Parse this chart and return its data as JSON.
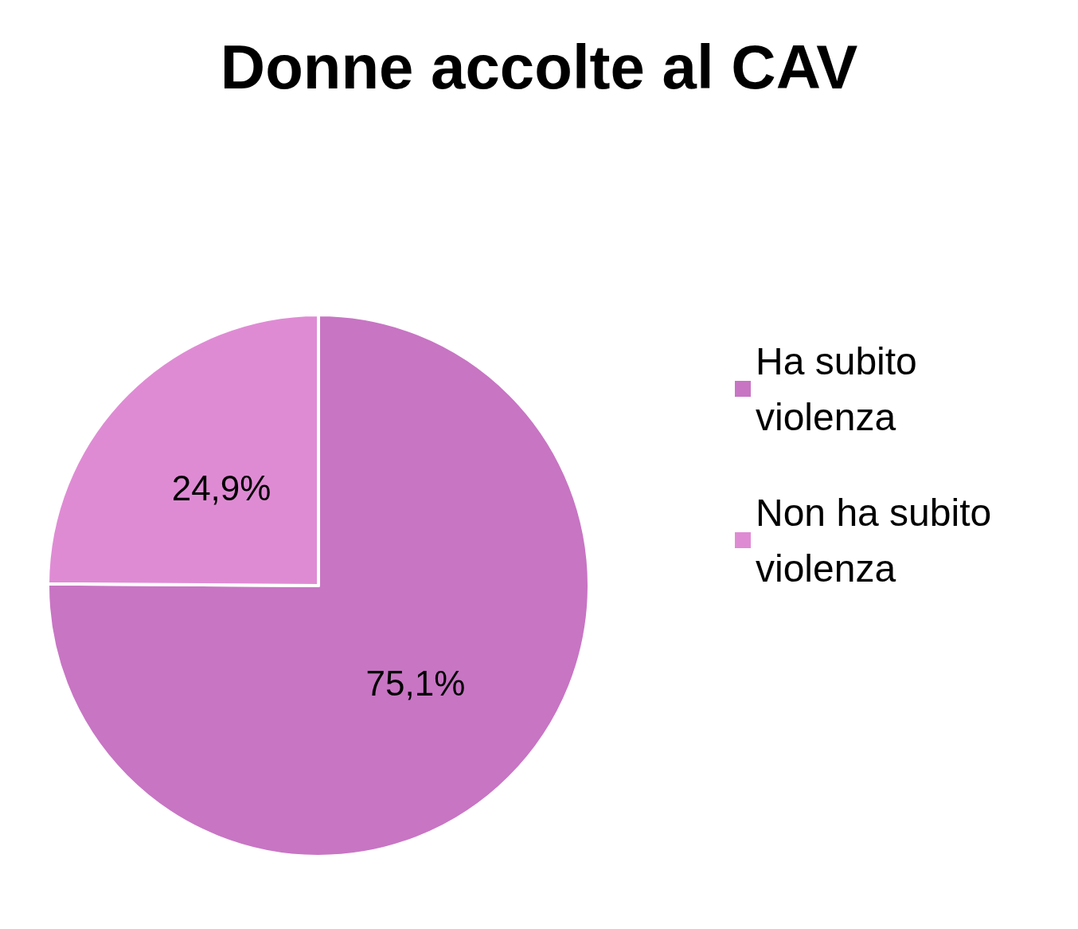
{
  "chart_data": {
    "type": "pie",
    "title": "Donne accolte al CAV",
    "categories": [
      "Ha subito violenza",
      "Non ha subito violenza"
    ],
    "values": [
      75.1,
      24.9
    ],
    "colors": [
      "#c875c4",
      "#df8bd4"
    ],
    "value_labels": [
      "75,1%",
      "24,9%"
    ],
    "legend": "right"
  }
}
